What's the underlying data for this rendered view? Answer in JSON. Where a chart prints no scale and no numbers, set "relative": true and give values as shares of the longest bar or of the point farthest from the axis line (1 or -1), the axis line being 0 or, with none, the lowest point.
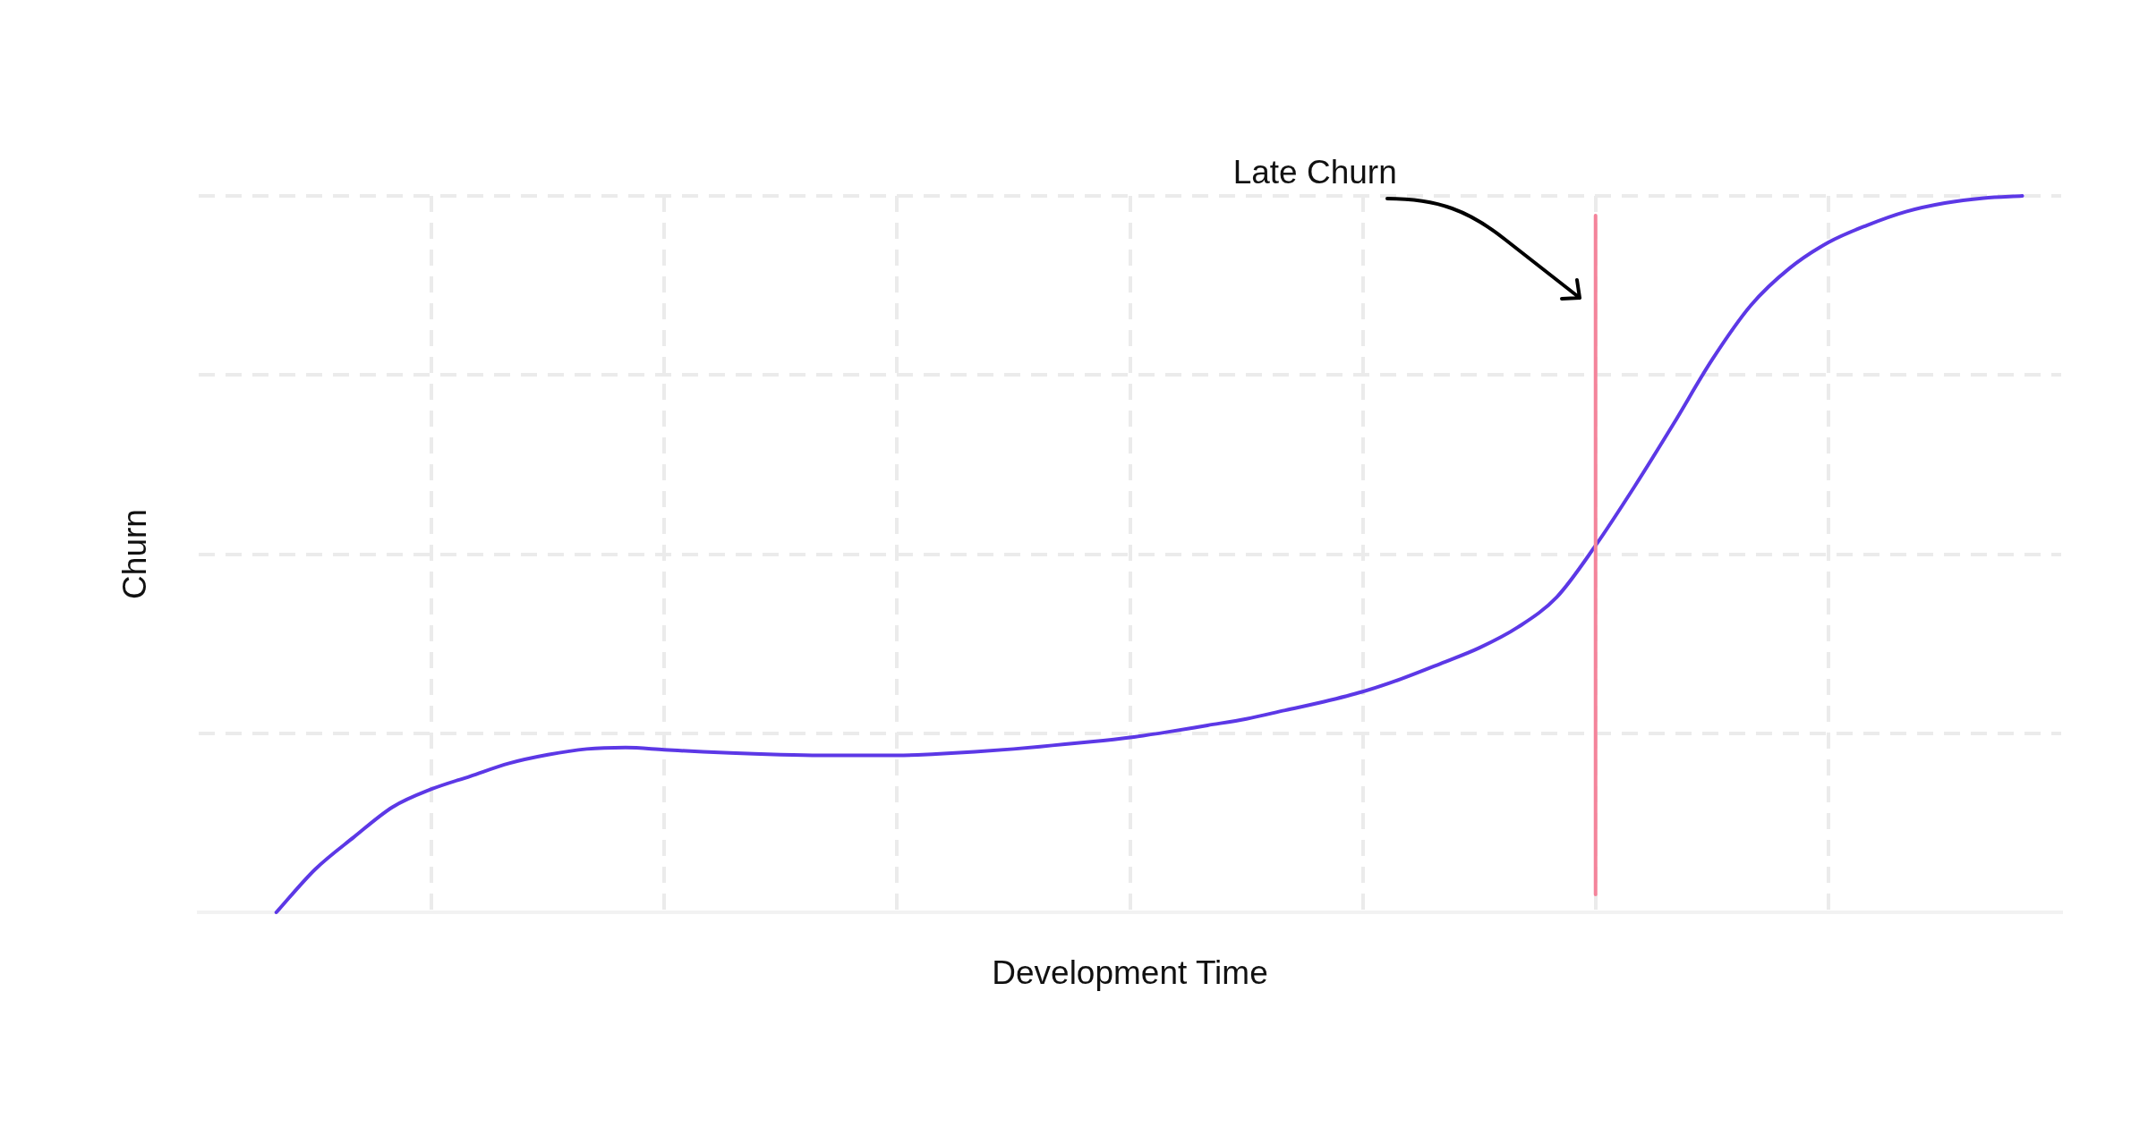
{
  "chart_data": {
    "type": "line",
    "xlabel": "Development Time",
    "ylabel": "Churn",
    "relative": true,
    "grid": true,
    "categories": [
      null,
      null,
      null,
      null,
      null,
      null,
      null,
      null,
      null,
      null,
      null,
      null,
      null,
      null,
      null,
      null,
      null,
      null,
      null,
      null,
      null,
      null,
      null,
      null,
      null,
      null,
      null,
      null,
      null,
      null,
      null,
      null,
      null,
      null,
      null,
      null,
      null,
      null,
      null,
      null,
      null,
      null,
      null,
      null,
      null,
      null,
      null,
      null,
      null
    ],
    "values": [
      null,
      null,
      0,
      0.06,
      0.105,
      0.147,
      0.172,
      0.19,
      0.208,
      0.22,
      0.228,
      0.23,
      0.227,
      0.224,
      0.222,
      0.22,
      0.219,
      0.219,
      0.219,
      0.221,
      0.224,
      0.228,
      0.233,
      0.238,
      0.244,
      0.252,
      0.261,
      0.27,
      0.282,
      0.294,
      0.308,
      0.326,
      0.347,
      0.369,
      0.398,
      0.44,
      0.512,
      0.594,
      0.681,
      0.771,
      0.847,
      0.899,
      0.935,
      0.959,
      0.978,
      0.99,
      0.997,
      1.0,
      null
    ],
    "color": "#5c38e6",
    "annotations": [
      "Late Churn"
    ]
  }
}
